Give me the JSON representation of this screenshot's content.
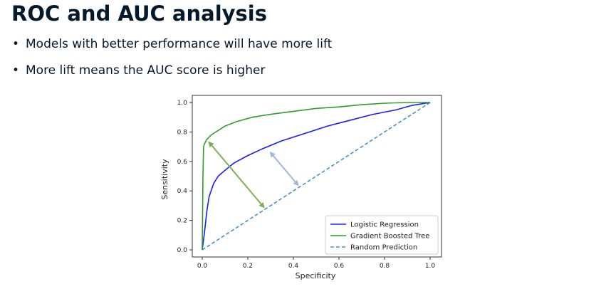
{
  "slide": {
    "title": "ROC and AUC analysis",
    "bullets": [
      "Models with better performance will have more lift",
      "More lift means the AUC score is higher"
    ]
  },
  "chart_data": {
    "type": "line",
    "xlabel": "Specificity",
    "ylabel": "Sensitivity",
    "xlim": [
      0,
      1
    ],
    "ylim": [
      0,
      1
    ],
    "xticks": [
      "0.0",
      "0.2",
      "0.4",
      "0.6",
      "0.8",
      "1.0"
    ],
    "yticks": [
      "0.0",
      "0.2",
      "0.4",
      "0.6",
      "0.8",
      "1.0"
    ],
    "grid": false,
    "legend_position": "bottom-right",
    "series": [
      {
        "name": "Logistic Regression",
        "color": "#1a1aff",
        "style": "solid",
        "x": [
          0,
          0.01,
          0.02,
          0.03,
          0.05,
          0.07,
          0.1,
          0.14,
          0.2,
          0.27,
          0.35,
          0.45,
          0.55,
          0.65,
          0.75,
          0.85,
          0.92,
          1.0
        ],
        "y": [
          0,
          0.12,
          0.26,
          0.36,
          0.45,
          0.5,
          0.54,
          0.59,
          0.64,
          0.69,
          0.74,
          0.79,
          0.84,
          0.88,
          0.92,
          0.95,
          0.98,
          1.0
        ]
      },
      {
        "name": "Gradient Boosted Tree",
        "color": "#2ca02c",
        "style": "solid",
        "x": [
          0,
          0.003,
          0.006,
          0.01,
          0.02,
          0.04,
          0.07,
          0.1,
          0.15,
          0.22,
          0.3,
          0.4,
          0.5,
          0.6,
          0.7,
          0.8,
          0.9,
          1.0
        ],
        "y": [
          0,
          0.5,
          0.7,
          0.72,
          0.75,
          0.78,
          0.81,
          0.84,
          0.87,
          0.9,
          0.92,
          0.94,
          0.96,
          0.97,
          0.985,
          0.995,
          1.0,
          1.0
        ]
      },
      {
        "name": "Random Prediction",
        "color": "#4a90c8",
        "style": "dashed",
        "x": [
          0,
          1
        ],
        "y": [
          0,
          1
        ]
      }
    ],
    "annotations": [
      {
        "type": "double-arrow",
        "color": "#7db150",
        "from": [
          0.03,
          0.73
        ],
        "to": [
          0.27,
          0.29
        ]
      },
      {
        "type": "double-arrow",
        "color": "#9fb6dd",
        "from": [
          0.3,
          0.66
        ],
        "to": [
          0.42,
          0.44
        ]
      }
    ]
  }
}
